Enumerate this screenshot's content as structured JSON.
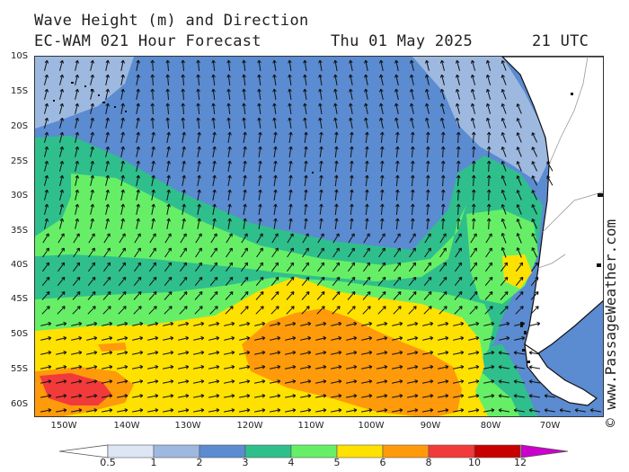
{
  "header": {
    "title": "Wave Height (m) and Direction",
    "model": "EC-WAM 021 Hour Forecast",
    "date": "Thu 01 May 2025",
    "time": "21 UTC"
  },
  "credit": "© www.PassageWeather.com",
  "map": {
    "lat_labels": [
      "10S",
      "15S",
      "20S",
      "25S",
      "30S",
      "35S",
      "40S",
      "45S",
      "50S",
      "55S",
      "60S"
    ],
    "lon_labels": [
      "150W",
      "140W",
      "130W",
      "120W",
      "110W",
      "100W",
      "90W",
      "80W",
      "70W"
    ],
    "arrow_direction": "predominantly northeast in the south, north in the center, northwest near the coast"
  },
  "legend": {
    "labels": [
      "0.5",
      "1",
      "2",
      "3",
      "4",
      "5",
      "6",
      "8",
      "10",
      "12"
    ],
    "colors": [
      "#ffffff",
      "#dde6f5",
      "#9eb9e0",
      "#5b8bd0",
      "#2fbf8c",
      "#66ef66",
      "#ffe100",
      "#ff9a0a",
      "#f23a3a",
      "#c80000",
      "#cc00cc"
    ],
    "units": "m"
  }
}
